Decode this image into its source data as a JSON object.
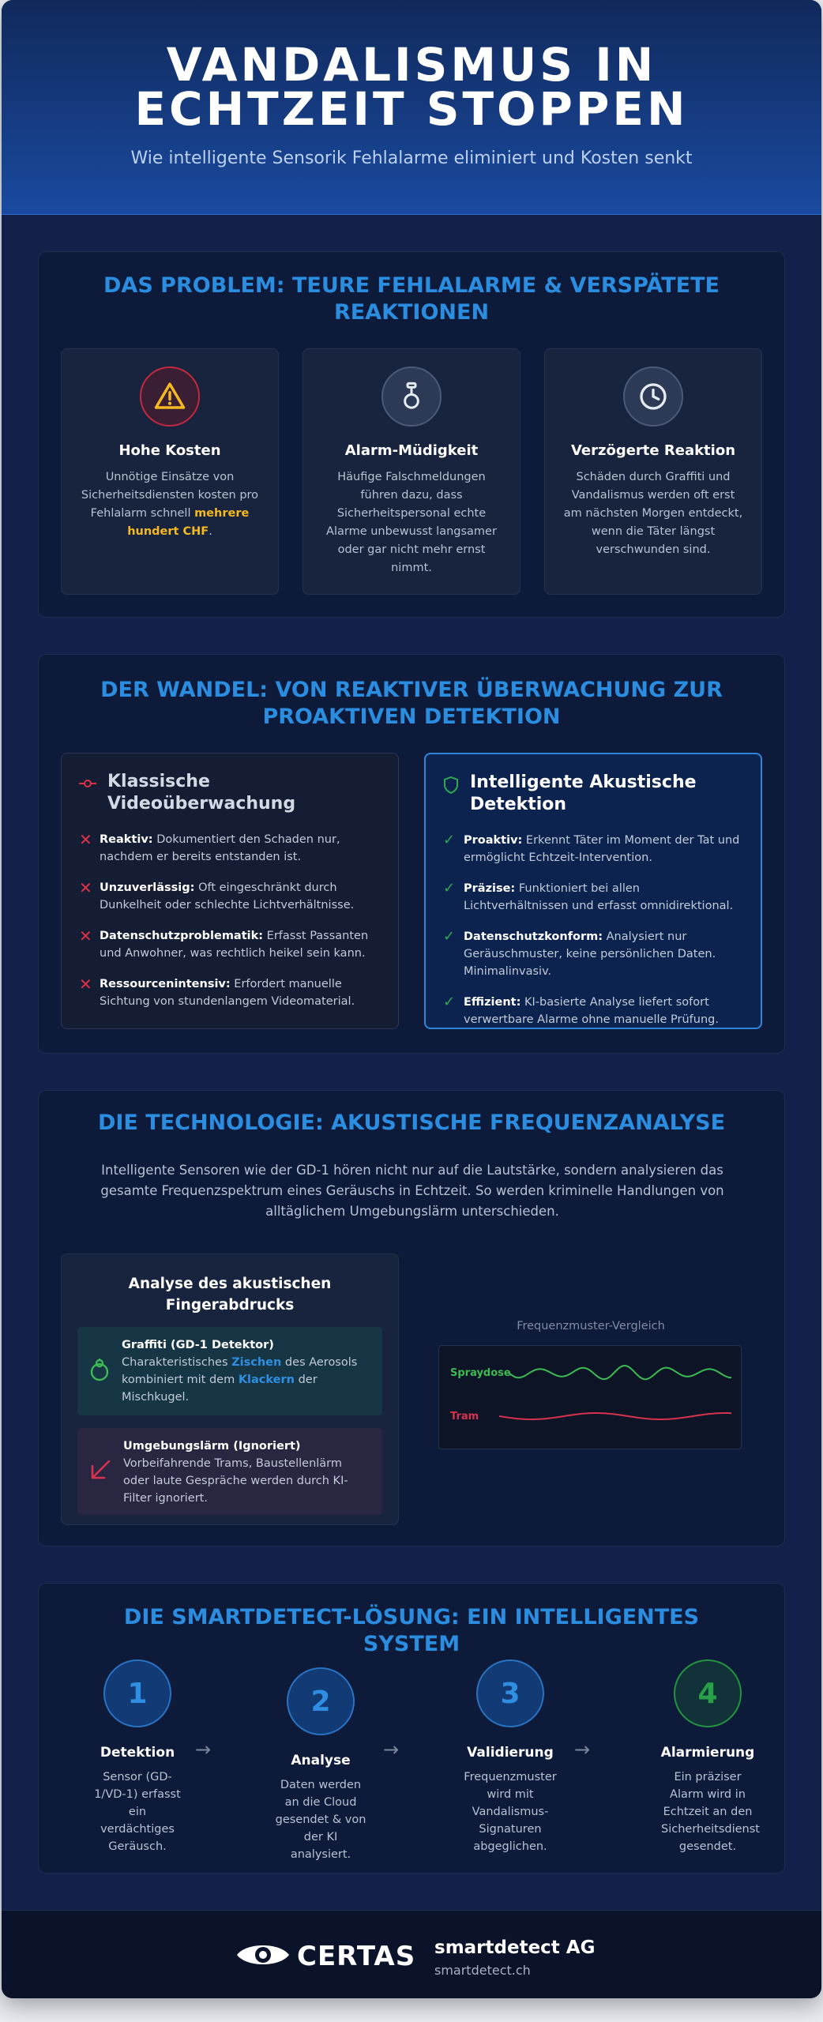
{
  "hero": {
    "title": "VANDALISMUS IN ECHTZEIT STOPPEN",
    "subtitle": "Wie intelligente Sensorik Fehlalarme eliminiert und Kosten senkt"
  },
  "problem": {
    "title": "DAS PROBLEM: TEURE FEHLALARME & VERSPÄTETE REAKTIONEN",
    "cards": [
      {
        "icon": "warning-icon",
        "title": "Hohe Kosten",
        "text_pre": "Unnötige Einsätze von Sicherheitsdiensten kosten pro Fehlalarm schnell ",
        "highlight": "mehrere hundert CHF",
        "text_post": "."
      },
      {
        "icon": "bell-icon",
        "title": "Alarm-Müdigkeit",
        "text": "Häufige Falschmeldungen führen dazu, dass Sicherheitspersonal echte Alarme unbewusst langsamer oder gar nicht mehr ernst nimmt."
      },
      {
        "icon": "clock-icon",
        "title": "Verzögerte Reaktion",
        "text": "Schäden durch Graffiti und Vandalismus werden oft erst am nächsten Morgen entdeckt, wenn die Täter längst verschwunden sind."
      }
    ]
  },
  "wandel": {
    "title": "DER WANDEL: VON REAKTIVER ÜBERWACHUNG ZUR PROAKTIVEN DETEKTION",
    "old": {
      "title": "Klassische Videoüberwachung",
      "items": [
        {
          "label": "Reaktiv:",
          "text": " Dokumentiert den Schaden nur, nachdem er bereits entstanden ist."
        },
        {
          "label": "Unzuverlässig:",
          "text": " Oft eingeschränkt durch Dunkelheit oder schlechte Lichtverhältnisse."
        },
        {
          "label": "Datenschutzproblematik:",
          "text": " Erfasst Passanten und Anwohner, was rechtlich heikel sein kann."
        },
        {
          "label": "Ressourcenintensiv:",
          "text": " Erfordert manuelle Sichtung von stundenlangem Videomaterial."
        }
      ]
    },
    "new": {
      "title": "Intelligente Akustische Detektion",
      "items": [
        {
          "label": "Proaktiv:",
          "text": " Erkennt Täter im Moment der Tat und ermöglicht Echtzeit-Intervention."
        },
        {
          "label": "Präzise:",
          "text": " Funktioniert bei allen Lichtverhältnissen und erfasst omnidirektional."
        },
        {
          "label": "Datenschutzkonform:",
          "text": " Analysiert nur Geräuschmuster, keine persönlichen Daten. Minimalinvasiv."
        },
        {
          "label": "Effizient:",
          "text": " KI-basierte Analyse liefert sofort verwertbare Alarme ohne manuelle Prüfung."
        }
      ]
    }
  },
  "tech": {
    "title": "DIE TECHNOLOGIE: AKUSTISCHE FREQUENZANALYSE",
    "intro": "Intelligente Sensoren wie der GD-1 hören nicht nur auf die Lautstärke, sondern analysieren das gesamte Frequenzspektrum eines Geräuschs in Echtzeit. So werden kriminelle Handlungen von alltäglichem Umgebungslärm unterschieden.",
    "card_title": "Analyse des akustischen Fingerabdrucks",
    "graffiti": {
      "title": "Graffiti (GD-1 Detektor)",
      "pre": "Charakteristisches ",
      "h1": "Zischen",
      "mid": " des Aerosols kombiniert mit dem ",
      "h2": "Klackern",
      "post": " der Mischkugel."
    },
    "noise": {
      "title": "Umgebungslärm (Ignoriert)",
      "text": "Vorbeifahrende Trams, Baustellenlärm oder laute Gespräche werden durch KI-Filter ignoriert."
    },
    "freq_caption": "Frequenzmuster-Vergleich",
    "freq_labels": {
      "spray": "Spraydose",
      "tram": "Tram"
    },
    "colors": {
      "spray": "#3cba54",
      "tram": "#d6334e"
    }
  },
  "solution": {
    "title": "DIE SMARTDETECT-LÖSUNG: EIN INTELLIGENTES SYSTEM",
    "steps": [
      {
        "num": "1",
        "title": "Detektion",
        "text": "Sensor (GD-1/VD-1) erfasst ein verdächtiges Geräusch."
      },
      {
        "num": "2",
        "title": "Analyse",
        "text": "Daten werden an die Cloud gesendet & von der KI analysiert."
      },
      {
        "num": "3",
        "title": "Validierung",
        "text": "Frequenzmuster wird mit Vandalismus-Signaturen abgeglichen."
      },
      {
        "num": "4",
        "title": "Alarmierung",
        "text": "Ein präziser Alarm wird in Echtzeit an den Sicherheitsdienst gesendet."
      }
    ],
    "arrow": "→"
  },
  "footer": {
    "logo": "CERTAS",
    "company": "smartdetect AG",
    "url": "smartdetect.ch"
  }
}
